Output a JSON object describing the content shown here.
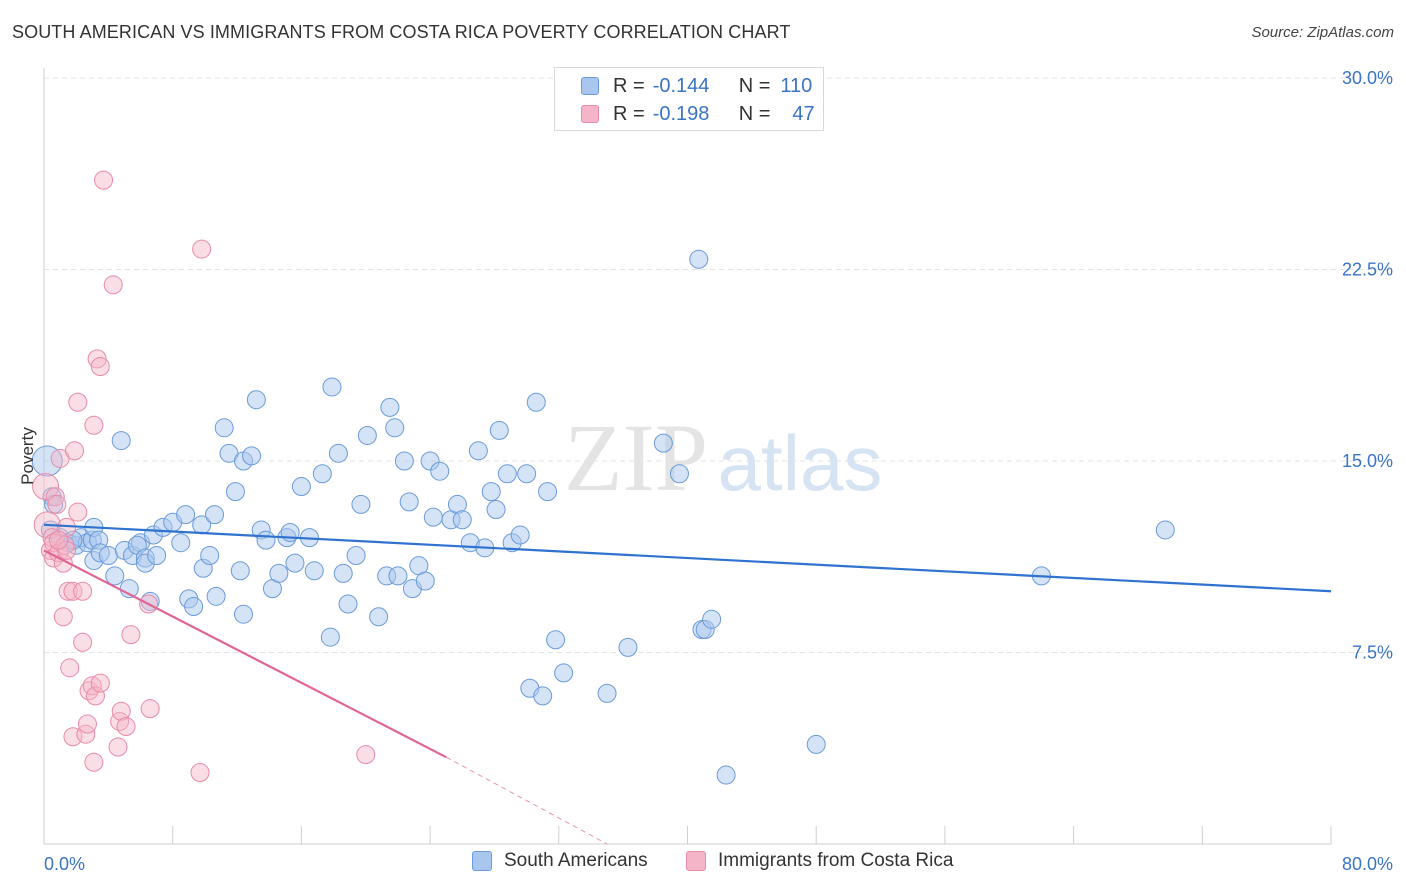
{
  "title": "SOUTH AMERICAN VS IMMIGRANTS FROM COSTA RICA POVERTY CORRELATION CHART",
  "source": "Source: ZipAtlas.com",
  "watermark": {
    "zip": "ZIP",
    "atlas": "atlas"
  },
  "legend": {
    "rows": [
      {
        "r_label": "R =",
        "r_value": "-0.144",
        "n_label": "N =",
        "n_value": "110"
      },
      {
        "r_label": "R =",
        "r_value": "-0.198",
        "n_label": "N =",
        "n_value": "47"
      }
    ]
  },
  "bottom_legend": {
    "south": "South Americans",
    "costa": "Immigrants from Costa Rica"
  },
  "colors": {
    "south_fill": "#a9c7ee",
    "south_stroke": "#6b9bd8",
    "south_line": "#2f72cf",
    "costa_fill": "#f5b5c8",
    "costa_stroke": "#e98aa8",
    "costa_line": "#e06595",
    "axis_text": "#3a74c4",
    "grid": "#e3e3e3"
  },
  "chart_data": {
    "type": "scatter",
    "title": "SOUTH AMERICAN VS IMMIGRANTS FROM COSTA RICA POVERTY CORRELATION CHART",
    "xlabel": "",
    "ylabel": "Poverty",
    "xlim": [
      0,
      80
    ],
    "ylim": [
      0,
      30
    ],
    "x_tick_labels": [
      "0.0%",
      "80.0%"
    ],
    "y_ticks": [
      7.5,
      15.0,
      22.5,
      30.0
    ],
    "y_tick_labels": [
      "7.5%",
      "15.0%",
      "22.5%",
      "30.0%"
    ],
    "grid": true,
    "legend_position": "top-center",
    "series": [
      {
        "name": "South Americans",
        "R": -0.144,
        "N": 110,
        "trend": {
          "x": [
            0,
            80
          ],
          "y": [
            12.5,
            9.9
          ]
        },
        "points": [
          [
            0.2,
            15.0
          ],
          [
            0.5,
            13.6
          ],
          [
            0.6,
            13.3
          ],
          [
            1,
            12.0
          ],
          [
            1.5,
            11.8
          ],
          [
            2,
            11.7
          ],
          [
            2.3,
            12.0
          ],
          [
            2.7,
            11.8
          ],
          [
            3,
            11.9
          ],
          [
            3.1,
            12.4
          ],
          [
            3.4,
            11.9
          ],
          [
            3.1,
            11.1
          ],
          [
            3.5,
            11.4
          ],
          [
            4,
            11.3
          ],
          [
            4.4,
            10.5
          ],
          [
            4.8,
            15.8
          ],
          [
            5,
            11.5
          ],
          [
            5.5,
            11.3
          ],
          [
            6,
            11.8
          ],
          [
            5.8,
            11.7
          ],
          [
            6.3,
            11.2
          ],
          [
            6.6,
            9.5
          ],
          [
            6.3,
            11.0
          ],
          [
            6.8,
            12.1
          ],
          [
            7,
            11.3
          ],
          [
            7.4,
            12.4
          ],
          [
            8,
            12.6
          ],
          [
            8.5,
            11.8
          ],
          [
            8.8,
            12.9
          ],
          [
            9,
            9.6
          ],
          [
            9.3,
            9.3
          ],
          [
            9.8,
            12.5
          ],
          [
            9.9,
            10.8
          ],
          [
            10.3,
            11.3
          ],
          [
            10.6,
            12.9
          ],
          [
            10.7,
            9.7
          ],
          [
            11.2,
            16.3
          ],
          [
            11.5,
            15.3
          ],
          [
            11.9,
            13.8
          ],
          [
            12.2,
            10.7
          ],
          [
            12.4,
            9.0
          ],
          [
            12.4,
            15.0
          ],
          [
            12.9,
            15.2
          ],
          [
            13.2,
            17.4
          ],
          [
            13.5,
            12.3
          ],
          [
            13.8,
            11.9
          ],
          [
            14.2,
            10.0
          ],
          [
            14.6,
            10.6
          ],
          [
            15.1,
            12.0
          ],
          [
            15.3,
            12.2
          ],
          [
            15.6,
            11.0
          ],
          [
            16,
            14.0
          ],
          [
            16.5,
            12.0
          ],
          [
            16.8,
            10.7
          ],
          [
            17.3,
            14.5
          ],
          [
            17.8,
            8.1
          ],
          [
            17.9,
            17.9
          ],
          [
            18.3,
            15.3
          ],
          [
            18.6,
            10.6
          ],
          [
            18.9,
            9.4
          ],
          [
            19.4,
            11.3
          ],
          [
            19.7,
            13.3
          ],
          [
            20.1,
            16.0
          ],
          [
            20.8,
            8.9
          ],
          [
            21.3,
            10.5
          ],
          [
            21.5,
            17.1
          ],
          [
            21.8,
            16.3
          ],
          [
            22,
            10.5
          ],
          [
            22.4,
            15.0
          ],
          [
            22.7,
            13.4
          ],
          [
            22.9,
            10.0
          ],
          [
            23.3,
            10.9
          ],
          [
            23.7,
            10.3
          ],
          [
            24,
            15.0
          ],
          [
            24.2,
            12.8
          ],
          [
            24.6,
            14.6
          ],
          [
            25.3,
            12.7
          ],
          [
            25.7,
            13.3
          ],
          [
            26,
            12.7
          ],
          [
            26.5,
            11.8
          ],
          [
            27,
            15.4
          ],
          [
            27.4,
            11.6
          ],
          [
            27.8,
            13.8
          ],
          [
            28.1,
            13.1
          ],
          [
            28.3,
            16.2
          ],
          [
            28.8,
            14.5
          ],
          [
            29.1,
            11.8
          ],
          [
            29.6,
            12.1
          ],
          [
            30,
            14.5
          ],
          [
            30.2,
            6.1
          ],
          [
            30.6,
            17.3
          ],
          [
            31,
            5.8
          ],
          [
            31.3,
            13.8
          ],
          [
            31.8,
            8.0
          ],
          [
            32.3,
            6.7
          ],
          [
            35,
            5.9
          ],
          [
            36.3,
            7.7
          ],
          [
            38.5,
            15.7
          ],
          [
            39.5,
            14.5
          ],
          [
            40.7,
            22.9
          ],
          [
            40.9,
            8.4
          ],
          [
            41.1,
            8.4
          ],
          [
            41.5,
            8.8
          ],
          [
            42.4,
            2.7
          ],
          [
            48,
            3.9
          ],
          [
            62,
            10.5
          ],
          [
            69.7,
            12.3
          ],
          [
            0.4,
            12.3
          ],
          [
            1.8,
            11.9
          ],
          [
            5.3,
            10.0
          ]
        ]
      },
      {
        "name": "Immigrants from Costa Rica",
        "R": -0.198,
        "N": 47,
        "trend": {
          "x": [
            0,
            25
          ],
          "y": [
            11.5,
            3.4
          ]
        },
        "trend_dashed": {
          "x": [
            25,
            35
          ],
          "y": [
            3.4,
            0.0
          ]
        },
        "points": [
          [
            0.1,
            14.0
          ],
          [
            0.2,
            12.5
          ],
          [
            0.4,
            11.5
          ],
          [
            0.5,
            12.0
          ],
          [
            0.6,
            11.2
          ],
          [
            0.6,
            11.8
          ],
          [
            0.7,
            13.6
          ],
          [
            0.8,
            13.3
          ],
          [
            0.9,
            11.4
          ],
          [
            1,
            15.1
          ],
          [
            1.2,
            11.0
          ],
          [
            1.3,
            11.7
          ],
          [
            1.4,
            11.5
          ],
          [
            1.5,
            9.9
          ],
          [
            1.6,
            6.9
          ],
          [
            1.8,
            9.9
          ],
          [
            1.8,
            4.2
          ],
          [
            1.9,
            15.4
          ],
          [
            2.1,
            13.0
          ],
          [
            2.1,
            17.3
          ],
          [
            2.4,
            7.9
          ],
          [
            2.4,
            9.9
          ],
          [
            2.6,
            4.3
          ],
          [
            2.7,
            4.7
          ],
          [
            2.8,
            6.0
          ],
          [
            3,
            6.2
          ],
          [
            3.1,
            3.2
          ],
          [
            3.1,
            16.4
          ],
          [
            3.2,
            5.8
          ],
          [
            3.3,
            19.0
          ],
          [
            3.5,
            6.3
          ],
          [
            3.5,
            18.7
          ],
          [
            3.7,
            26.0
          ],
          [
            4.3,
            21.9
          ],
          [
            4.6,
            3.8
          ],
          [
            4.7,
            4.8
          ],
          [
            4.8,
            5.2
          ],
          [
            5.1,
            4.6
          ],
          [
            5.4,
            8.2
          ],
          [
            6.5,
            9.4
          ],
          [
            6.6,
            5.3
          ],
          [
            9.8,
            23.3
          ],
          [
            9.7,
            2.8
          ],
          [
            20,
            3.5
          ],
          [
            1.2,
            8.9
          ],
          [
            1.4,
            12.4
          ],
          [
            0.9,
            11.9
          ]
        ]
      }
    ]
  }
}
